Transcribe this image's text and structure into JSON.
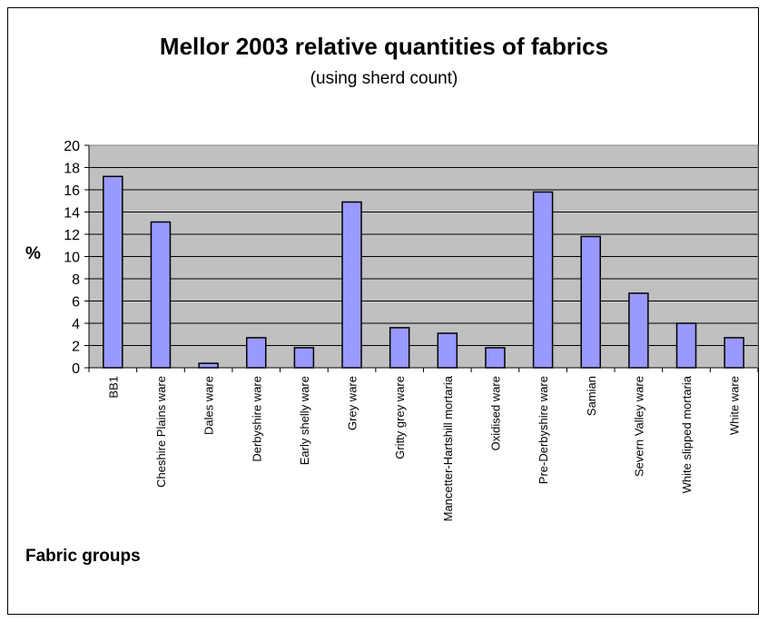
{
  "chart_data": {
    "type": "bar",
    "title": "Mellor 2003 relative quantities of fabrics",
    "subtitle": "(using sherd count)",
    "xlabel": "Fabric groups",
    "ylabel": "%",
    "ylim": [
      0,
      20
    ],
    "yticks": [
      0,
      2,
      4,
      6,
      8,
      10,
      12,
      14,
      16,
      18,
      20
    ],
    "grid": true,
    "categories": [
      "BB1",
      "Cheshire Plains ware",
      "Dales ware",
      "Derbyshire ware",
      "Early shelly ware",
      "Grey ware",
      "Gritty grey ware",
      "Mancetter-Hartshill mortaria",
      "Oxidised ware",
      "Pre-Derbyshire ware",
      "Samian",
      "Severn Valley ware",
      "White slipped mortaria",
      "White ware"
    ],
    "values": [
      17.2,
      13.1,
      0.4,
      2.7,
      1.8,
      14.9,
      3.6,
      3.1,
      1.8,
      15.8,
      11.8,
      6.7,
      4.0,
      2.7
    ],
    "colors": {
      "bar_fill": "#9999ff",
      "bar_stroke": "#000000",
      "plot_background": "#c0c0c0",
      "gridline": "#000000"
    }
  }
}
